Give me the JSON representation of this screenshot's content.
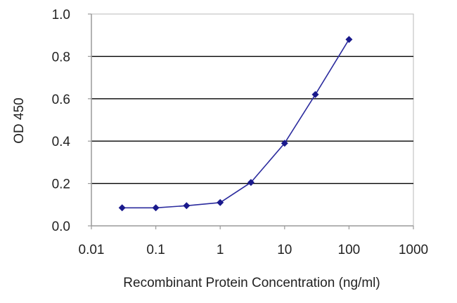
{
  "chart_data": {
    "type": "line",
    "xlabel": "Recombinant Protein Concentration (ng/ml)",
    "ylabel": "OD 450",
    "x_scale": "log",
    "xlim": [
      0.01,
      1000
    ],
    "ylim": [
      0.0,
      1.0
    ],
    "x_ticks": [
      "0.01",
      "0.1",
      "1",
      "10",
      "100",
      "1000"
    ],
    "y_ticks": [
      "0.0",
      "0.2",
      "0.4",
      "0.6",
      "0.8",
      "1.0"
    ],
    "grid": "horizontal",
    "series": [
      {
        "x": [
          0.03,
          0.1,
          0.3,
          1,
          3,
          10,
          30,
          100
        ],
        "y": [
          0.085,
          0.085,
          0.095,
          0.11,
          0.205,
          0.39,
          0.62,
          0.88
        ]
      }
    ],
    "colors": {
      "line": "#2b2b9e",
      "marker": "#1a1a8c",
      "grid": "#000000",
      "axis": "#9a9a9a"
    }
  }
}
